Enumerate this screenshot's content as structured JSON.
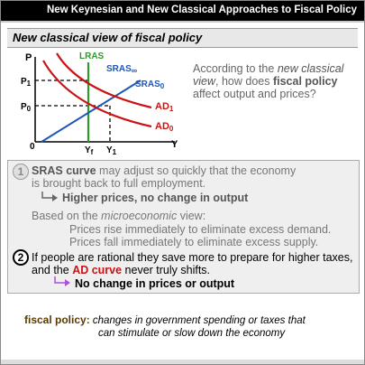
{
  "header": {
    "title": "New Keynesian and New Classical Approaches to Fiscal Policy"
  },
  "section": {
    "title": "New classical view of fiscal policy"
  },
  "graph": {
    "y_axis": "P",
    "x_axis": "Y",
    "origin": "0",
    "p1": "P",
    "p1_sub": "1",
    "p0": "P",
    "p0_sub": "0",
    "yf": "Y",
    "yf_sub": "f",
    "y1": "Y",
    "y1_sub": "1",
    "lras": "LRAS",
    "sras_inf": "SRAS",
    "sras_inf_sub": "∞",
    "sras0": "SRAS",
    "sras0_sub": "0",
    "ad1": "AD",
    "ad1_sub": "1",
    "ad0": "AD",
    "ad0_sub": "0",
    "colors": {
      "lras": "#2e9a2e",
      "sras": "#1f56b8",
      "ad": "#c81414",
      "dash": "#000000"
    }
  },
  "question": {
    "pre": "According to the ",
    "em": "new classical view",
    "mid": ", how does ",
    "strong": "fiscal policy",
    "post": " affect output and prices?"
  },
  "point1": {
    "number": "1",
    "bold": "SRAS curve",
    "line1_rest": " may adjust so quickly that the economy",
    "line2": "is brought back to full employment.",
    "result": "Higher prices, no change in output",
    "basis_pre": "Based on the ",
    "basis_em": "microeconomic",
    "basis_post": " view:",
    "rise": "Prices rise immediately to eliminate excess demand.",
    "fall": "Prices fall immediately to eliminate excess supply."
  },
  "point2": {
    "number": "2",
    "line1": "If people are rational they save more to prepare for higher taxes,",
    "line2_pre": "and the ",
    "line2_bold": "AD curve",
    "line2_post": " never truly shifts.",
    "result": "No change in prices or output",
    "arrow_color": "#b14fd8"
  },
  "glossary": {
    "term": "fiscal policy:",
    "def_line1": "changes in government spending or taxes that",
    "def_line2": "can stimulate or slow down the economy"
  }
}
